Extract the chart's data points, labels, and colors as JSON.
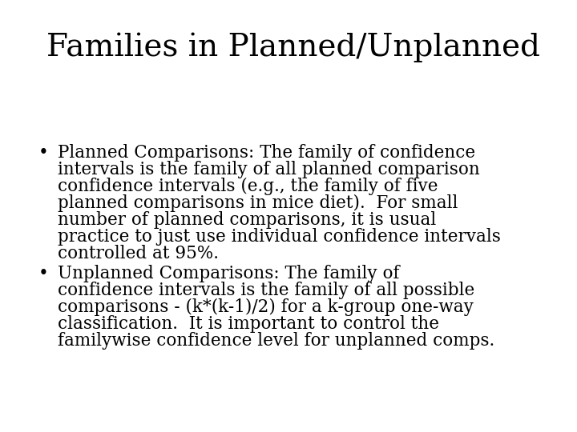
{
  "title": "Families in Planned/Unplanned",
  "background_color": "#ffffff",
  "title_fontsize": 28,
  "title_color": "#000000",
  "body_fontsize": 15.5,
  "body_color": "#000000",
  "bullet1_lines": [
    "Planned Comparisons: The family of confidence",
    "intervals is the family of all planned comparison",
    "confidence intervals (e.g., the family of five",
    "planned comparisons in mice diet).  For small",
    "number of planned comparisons, it is usual",
    "practice to just use individual confidence intervals",
    "controlled at 95%."
  ],
  "bullet2_lines": [
    "Unplanned Comparisons: The family of",
    "confidence intervals is the family of all possible",
    "comparisons - (k*(k-1)/2) for a k-group one-way",
    "classification.  It is important to control the",
    "familywise confidence level for unplanned comps."
  ]
}
